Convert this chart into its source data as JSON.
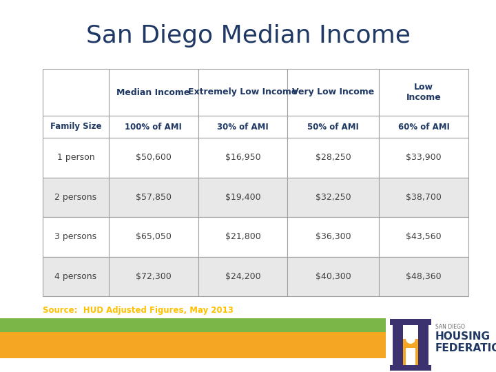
{
  "title": "San Diego Median Income",
  "title_color": "#1F3864",
  "title_fontsize": 26,
  "col_headers": [
    "",
    "Median Income",
    "Extremely Low Income",
    "Very Low Income",
    "Low\nIncome"
  ],
  "col_subheaders": [
    "Family Size",
    "100% of AMI",
    "30% of AMI",
    "50% of AMI",
    "60% of AMI"
  ],
  "row_labels": [
    "1 person",
    "2 persons",
    "3 persons",
    "4 persons"
  ],
  "data": [
    [
      "$50,600",
      "$16,950",
      "$28,250",
      "$33,900"
    ],
    [
      "$57,850",
      "$19,400",
      "$32,250",
      "$38,700"
    ],
    [
      "$65,050",
      "$21,800",
      "$36,300",
      "$43,560"
    ],
    [
      "$72,300",
      "$24,200",
      "$40,300",
      "$48,360"
    ]
  ],
  "source_text": "Source:  HUD Adjusted Figures, May 2013",
  "source_color": "#FFC000",
  "header_text_color": "#1F3864",
  "subheader_text_color": "#1F3864",
  "row_label_color": "#404040",
  "data_text_color": "#404040",
  "border_color": "#A0A0A0",
  "alt_row_color": "#E8E8E8",
  "white_row_color": "#FFFFFF",
  "bar_green": "#7AB648",
  "bar_orange": "#F5A623",
  "background_color": "#FFFFFF",
  "logo_purple": "#3D3270",
  "logo_orange": "#F5A623",
  "logo_text_color": "#1F3864",
  "logo_small_text": "SAN DIEGO",
  "logo_big_text1": "HOUSING",
  "logo_big_text2": "FEDERATION"
}
